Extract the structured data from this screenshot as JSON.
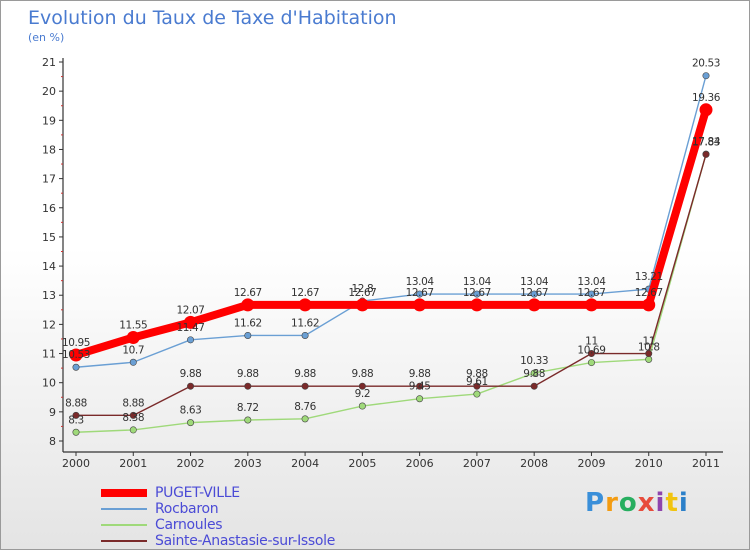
{
  "chart_data": {
    "type": "line",
    "title": "Evolution du Taux de Taxe d'Habitation",
    "subtitle": "(en %)",
    "xlabel": "",
    "ylabel": "",
    "x": [
      "2000",
      "2001",
      "2002",
      "2003",
      "2004",
      "2005",
      "2006",
      "2007",
      "2008",
      "2009",
      "2010",
      "2011"
    ],
    "ylim": [
      8,
      21
    ],
    "yticks": [
      8,
      9,
      10,
      11,
      12,
      13,
      14,
      15,
      16,
      17,
      18,
      19,
      20,
      21
    ],
    "grid": false,
    "legend_position": "bottom-left",
    "series": [
      {
        "name": "PUGET-VILLE",
        "color": "#ff0000",
        "values": [
          10.95,
          11.55,
          12.07,
          12.67,
          12.67,
          12.67,
          12.67,
          12.67,
          12.67,
          12.67,
          12.67,
          19.36
        ],
        "labels": [
          "10.95",
          "11.55",
          "12.07",
          "12.67",
          "12.67",
          "12.67",
          "12.67",
          "12.67",
          "12.67",
          "12.67",
          "12.67",
          "19.36"
        ]
      },
      {
        "name": "Rocbaron",
        "color": "#6a9fd4",
        "values": [
          10.53,
          10.7,
          11.47,
          11.62,
          11.62,
          12.8,
          13.04,
          13.04,
          13.04,
          13.04,
          13.21,
          20.53
        ],
        "labels": [
          "10.53",
          "10.7",
          "11.47",
          "11.62",
          "11.62",
          "12.8",
          "13.04",
          "13.04",
          "13.04",
          "13.04",
          "13.21",
          "20.53"
        ]
      },
      {
        "name": "Carnoules",
        "color": "#9fd97a",
        "values": [
          8.3,
          8.38,
          8.63,
          8.72,
          8.76,
          9.2,
          9.45,
          9.61,
          10.33,
          10.69,
          10.8,
          17.84
        ],
        "labels": [
          "8.3",
          "8.38",
          "8.63",
          "8.72",
          "8.76",
          "9.2",
          "9.45",
          "9.61",
          "10.33",
          "10.69",
          "10.8",
          "17.84"
        ]
      },
      {
        "name": "Sainte-Anastasie-sur-Issole",
        "color": "#7a2a2a",
        "values": [
          8.88,
          8.88,
          9.88,
          9.88,
          9.88,
          9.88,
          9.88,
          9.88,
          9.88,
          11,
          11,
          17.83
        ],
        "labels": [
          "8.88",
          "8.88",
          "9.88",
          "9.88",
          "9.88",
          "9.88",
          "9.88",
          "9.88",
          "9.88",
          "11",
          "11",
          "17.83"
        ]
      }
    ]
  },
  "logo_text": "Proxiti"
}
